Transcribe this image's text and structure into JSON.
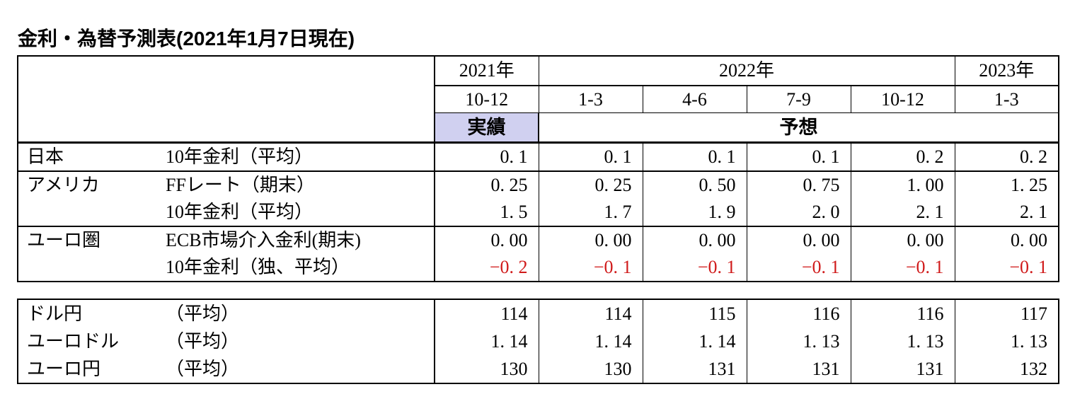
{
  "page_title": "金利・為替予測表(2021年1月7日現在)",
  "colors": {
    "background": "#ffffff",
    "table_border": "#000000",
    "actual_cell_fill": "#d0d0f0",
    "negative_value_red": "#d01a1a",
    "text": "#000000"
  },
  "header": {
    "years": [
      {
        "label": "2021年"
      },
      {
        "label": "2022年"
      },
      {
        "label": "2023年"
      }
    ],
    "quarters": [
      "10-12",
      "1-3",
      "4-6",
      "7-9",
      "10-12",
      "1-3"
    ],
    "actual_label": "実績",
    "forecast_label": "予想"
  },
  "rates": {
    "rows": [
      {
        "region": "日本",
        "item": "10年金利（平均）",
        "values": [
          "0. 1",
          "0. 1",
          "0. 1",
          "0. 1",
          "0. 2",
          "0. 2"
        ]
      },
      {
        "region": "アメリカ",
        "item": "FFレート（期末）",
        "values": [
          "0. 25",
          "0. 25",
          "0. 50",
          "0. 75",
          "1. 00",
          "1. 25"
        ]
      },
      {
        "region": "",
        "item": "10年金利（平均）",
        "values": [
          "1. 5",
          "1. 7",
          "1. 9",
          "2. 0",
          "2. 1",
          "2. 1"
        ]
      },
      {
        "region": "ユーロ圏",
        "item": "ECB市場介入金利(期末)",
        "values": [
          "0. 00",
          "0. 00",
          "0. 00",
          "0. 00",
          "0. 00",
          "0. 00"
        ]
      },
      {
        "region": "",
        "item": "10年金利（独、平均）",
        "values": [
          "−0. 2",
          "−0. 1",
          "−0. 1",
          "−0. 1",
          "−0. 1",
          "−0. 1"
        ]
      }
    ]
  },
  "fx": {
    "rows": [
      {
        "pair": "ドル円",
        "item": "（平均）",
        "values": [
          "114",
          "114",
          "115",
          "116",
          "116",
          "117"
        ]
      },
      {
        "pair": "ユーロドル",
        "item": "（平均）",
        "values": [
          "1. 14",
          "1. 14",
          "1. 14",
          "1. 13",
          "1. 13",
          "1. 13"
        ]
      },
      {
        "pair": "ユーロ円",
        "item": "（平均）",
        "values": [
          "130",
          "130",
          "131",
          "131",
          "131",
          "132"
        ]
      }
    ]
  },
  "chart_data": {
    "type": "table",
    "title": "金利・為替予測表(2021年1月7日現在)",
    "column_groups": [
      {
        "year": "2021年",
        "quarters": [
          "10-12"
        ],
        "status": "実績"
      },
      {
        "year": "2022年",
        "quarters": [
          "1-3",
          "4-6",
          "7-9",
          "10-12"
        ],
        "status": "予想"
      },
      {
        "year": "2023年",
        "quarters": [
          "1-3"
        ],
        "status": "予想"
      }
    ],
    "columns": [
      "2021年10-12",
      "2022年1-3",
      "2022年4-6",
      "2022年7-9",
      "2022年10-12",
      "2023年1-3"
    ],
    "rows": [
      {
        "group": "日本",
        "item": "10年金利（平均）",
        "values": [
          0.1,
          0.1,
          0.1,
          0.1,
          0.2,
          0.2
        ]
      },
      {
        "group": "アメリカ",
        "item": "FFレート（期末）",
        "values": [
          0.25,
          0.25,
          0.5,
          0.75,
          1.0,
          1.25
        ]
      },
      {
        "group": "アメリカ",
        "item": "10年金利（平均）",
        "values": [
          1.5,
          1.7,
          1.9,
          2.0,
          2.1,
          2.1
        ]
      },
      {
        "group": "ユーロ圏",
        "item": "ECB市場介入金利(期末)",
        "values": [
          0.0,
          0.0,
          0.0,
          0.0,
          0.0,
          0.0
        ]
      },
      {
        "group": "ユーロ圏",
        "item": "10年金利（独、平均）",
        "values": [
          -0.2,
          -0.1,
          -0.1,
          -0.1,
          -0.1,
          -0.1
        ]
      },
      {
        "group": "ドル円",
        "item": "（平均）",
        "values": [
          114,
          114,
          115,
          116,
          116,
          117
        ]
      },
      {
        "group": "ユーロドル",
        "item": "（平均）",
        "values": [
          1.14,
          1.14,
          1.14,
          1.13,
          1.13,
          1.13
        ]
      },
      {
        "group": "ユーロ円",
        "item": "（平均）",
        "values": [
          130,
          130,
          131,
          131,
          131,
          132
        ]
      }
    ]
  }
}
